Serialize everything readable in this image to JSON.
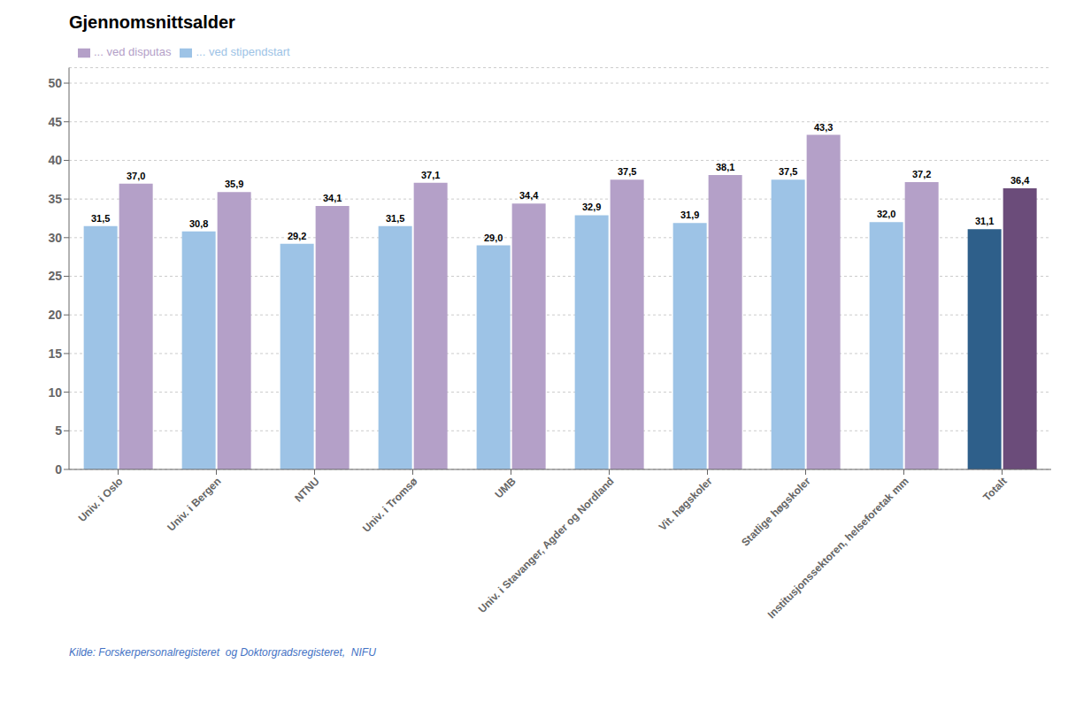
{
  "chart_data": {
    "type": "bar",
    "title": "Gjennomsnittsalder",
    "categories": [
      "Univ. i Oslo",
      "Univ. i Bergen",
      "NTNU",
      "Univ. i Tromsø",
      "UMB",
      "Univ. i Stavanger, Agder og Nordland",
      "Vit. høgskoler",
      "Statlige høgskoler",
      "Institusjonssektoren, helseforetak mm",
      "Totalt"
    ],
    "series": [
      {
        "name": "... ved stipendstart",
        "color": "#9DC3E6",
        "colors": [
          "#9DC3E6",
          "#9DC3E6",
          "#9DC3E6",
          "#9DC3E6",
          "#9DC3E6",
          "#9DC3E6",
          "#9DC3E6",
          "#9DC3E6",
          "#9DC3E6",
          "#2E5F8A"
        ],
        "values": [
          31.5,
          30.8,
          29.2,
          31.5,
          29.0,
          32.9,
          31.9,
          37.5,
          32.0,
          31.1
        ],
        "value_labels": [
          "31,5",
          "30,8",
          "29,2",
          "31,5",
          "29,0",
          "32,9",
          "31,9",
          "37,5",
          "32,0",
          "31,1"
        ]
      },
      {
        "name": "... ved disputas",
        "color": "#B4A0C8",
        "colors": [
          "#B4A0C8",
          "#B4A0C8",
          "#B4A0C8",
          "#B4A0C8",
          "#B4A0C8",
          "#B4A0C8",
          "#B4A0C8",
          "#B4A0C8",
          "#B4A0C8",
          "#6B4C7A"
        ],
        "values": [
          37.0,
          35.9,
          34.1,
          37.1,
          34.4,
          37.5,
          38.1,
          43.3,
          37.2,
          36.4
        ],
        "value_labels": [
          "37,0",
          "35,9",
          "34,1",
          "37,1",
          "34,4",
          "37,5",
          "38,1",
          "43,3",
          "37,2",
          "36,4"
        ]
      }
    ],
    "ylim": [
      0,
      52
    ],
    "yticks": [
      0,
      5,
      10,
      15,
      20,
      25,
      30,
      35,
      40,
      45,
      50
    ],
    "grid": true,
    "legend": "upper left",
    "data_labels": true,
    "annotations": [
      "Kilde: Forskerpersonalregisteret  og Doktorgradsregisteret,  NIFU"
    ]
  }
}
